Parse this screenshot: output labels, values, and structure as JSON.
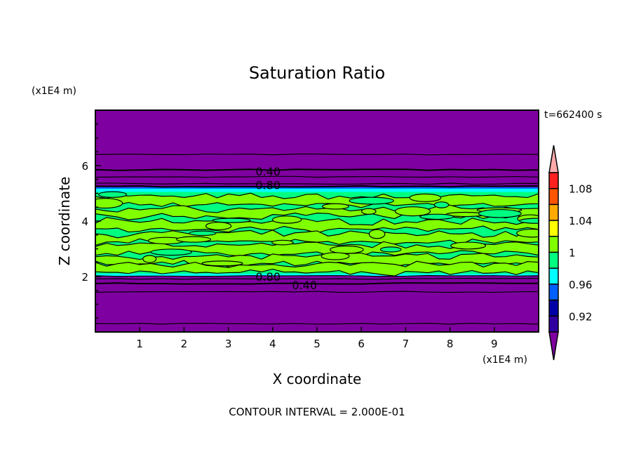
{
  "chart_data": {
    "type": "heatmap",
    "title": "Saturation Ratio",
    "xlabel": "X coordinate",
    "ylabel": "Z coordinate",
    "x_unit": "(x1E4 m)",
    "y_unit": "(x1E4 m)",
    "xlim": [
      0,
      10
    ],
    "ylim": [
      0,
      8
    ],
    "x_ticks": [
      "1",
      "2",
      "3",
      "4",
      "5",
      "6",
      "7",
      "8",
      "9"
    ],
    "y_ticks": [
      "2",
      "4",
      "6"
    ],
    "time_label": "t=662400 s",
    "footer": "CONTOUR INTERVAL = 2.000E-01",
    "contour_labels": [
      {
        "text": "0.40",
        "x": 3.5,
        "z": 5.8
      },
      {
        "text": "0.80",
        "x": 3.5,
        "z": 5.3
      },
      {
        "text": "0.80",
        "x": 3.5,
        "z": 2.0
      },
      {
        "text": "0.40",
        "x": 3.5,
        "z": 1.7
      }
    ],
    "regions": [
      {
        "z_range": [
          0,
          2.05
        ],
        "value": "<0.90"
      },
      {
        "z_range": [
          2.05,
          5.05
        ],
        "value": "0.98-1.02 (alternating bands)"
      },
      {
        "z_range": [
          5.05,
          5.2
        ],
        "value": "0.96-0.98"
      },
      {
        "z_range": [
          5.2,
          8
        ],
        "value": "<0.90"
      }
    ],
    "colorbar": {
      "levels": [
        0.9,
        0.92,
        0.94,
        0.96,
        0.98,
        1.0,
        1.02,
        1.04,
        1.06,
        1.08,
        1.1
      ],
      "tick_labels": [
        "1.08",
        "1.04",
        "1",
        "0.96",
        "0.92"
      ],
      "colors": [
        "#3000a0",
        "#0000a8",
        "#0060ff",
        "#00ffff",
        "#00ff80",
        "#80ff00",
        "#ffff00",
        "#ffaa00",
        "#ff5500",
        "#ff2020"
      ],
      "under_color": "#7f00a0",
      "over_color": "#ffaaaa"
    }
  }
}
